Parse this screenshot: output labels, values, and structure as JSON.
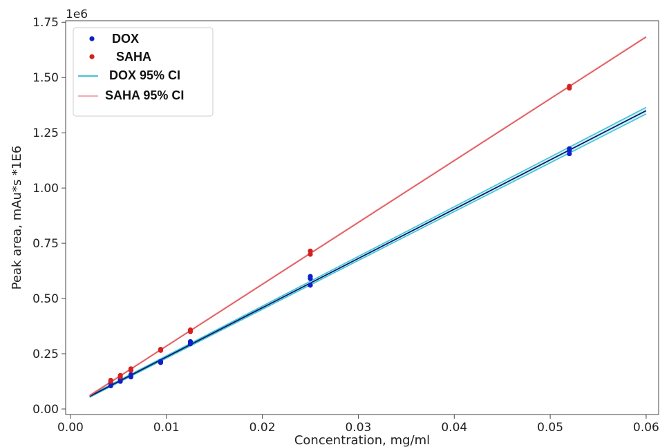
{
  "chart_data": {
    "type": "scatter",
    "xlabel": "Concentration, mg/ml",
    "ylabel": "Peak area, mAu*s *1E6",
    "y_offset_label": "1e6",
    "xlim": [
      -0.0005,
      0.0613
    ],
    "ylim": [
      -0.025,
      1.757
    ],
    "x_ticks": [
      0.0,
      0.01,
      0.02,
      0.03,
      0.04,
      0.05,
      0.06
    ],
    "x_tick_labels": [
      "0.00",
      "0.01",
      "0.02",
      "0.03",
      "0.04",
      "0.05",
      "0.06"
    ],
    "y_ticks": [
      0.0,
      0.25,
      0.5,
      0.75,
      1.0,
      1.25,
      1.5,
      1.75
    ],
    "y_tick_labels": [
      "0.00",
      "0.25",
      "0.50",
      "0.75",
      "1.00",
      "1.25",
      "1.50",
      "1.75"
    ],
    "grid": false,
    "legend_position": "top-left",
    "series": [
      {
        "name": "DOX",
        "kind": "scatter",
        "color": "#1020c8",
        "points": [
          {
            "x": 0.0042,
            "y": 0.105
          },
          {
            "x": 0.0042,
            "y": 0.118
          },
          {
            "x": 0.0052,
            "y": 0.125
          },
          {
            "x": 0.0052,
            "y": 0.135
          },
          {
            "x": 0.0063,
            "y": 0.145
          },
          {
            "x": 0.0063,
            "y": 0.155
          },
          {
            "x": 0.0094,
            "y": 0.21
          },
          {
            "x": 0.0094,
            "y": 0.215
          },
          {
            "x": 0.0125,
            "y": 0.295
          },
          {
            "x": 0.0125,
            "y": 0.305
          },
          {
            "x": 0.025,
            "y": 0.56
          },
          {
            "x": 0.025,
            "y": 0.59
          },
          {
            "x": 0.025,
            "y": 0.6
          },
          {
            "x": 0.052,
            "y": 1.155
          },
          {
            "x": 0.052,
            "y": 1.17
          },
          {
            "x": 0.052,
            "y": 1.178
          }
        ]
      },
      {
        "name": "SAHA",
        "kind": "scatter",
        "color": "#d42020",
        "points": [
          {
            "x": 0.0042,
            "y": 0.125
          },
          {
            "x": 0.0042,
            "y": 0.13
          },
          {
            "x": 0.0052,
            "y": 0.145
          },
          {
            "x": 0.0052,
            "y": 0.152
          },
          {
            "x": 0.0063,
            "y": 0.175
          },
          {
            "x": 0.0063,
            "y": 0.182
          },
          {
            "x": 0.0094,
            "y": 0.265
          },
          {
            "x": 0.0094,
            "y": 0.27
          },
          {
            "x": 0.0125,
            "y": 0.35
          },
          {
            "x": 0.0125,
            "y": 0.358
          },
          {
            "x": 0.025,
            "y": 0.7
          },
          {
            "x": 0.025,
            "y": 0.715
          },
          {
            "x": 0.052,
            "y": 1.452
          },
          {
            "x": 0.052,
            "y": 1.46
          }
        ]
      },
      {
        "name": "DOX 95% CI",
        "kind": "band",
        "color": "#3ec4d6",
        "x": [
          0.002,
          0.06
        ],
        "fit": [
          0.057,
          1.35
        ],
        "lower": [
          0.053,
          1.335
        ],
        "upper": [
          0.061,
          1.365
        ]
      },
      {
        "name": "SAHA 95% CI",
        "kind": "line",
        "color": "#f5a8b4",
        "x": [
          0.002,
          0.06
        ],
        "y": [
          0.063,
          1.686
        ]
      },
      {
        "name": "",
        "kind": "line",
        "color": "#e05858",
        "x": [
          0.002,
          0.06
        ],
        "y": [
          0.06,
          1.683
        ]
      }
    ],
    "legend": [
      {
        "label": "DOX",
        "marker": "dot",
        "color": "#1020c8"
      },
      {
        "label": "SAHA",
        "marker": "dot",
        "color": "#d42020"
      },
      {
        "label": "DOX 95% CI",
        "marker": "line",
        "color": "#3ec4d6"
      },
      {
        "label": "SAHA 95% CI",
        "marker": "line",
        "color": "#f5a8b4"
      }
    ]
  }
}
